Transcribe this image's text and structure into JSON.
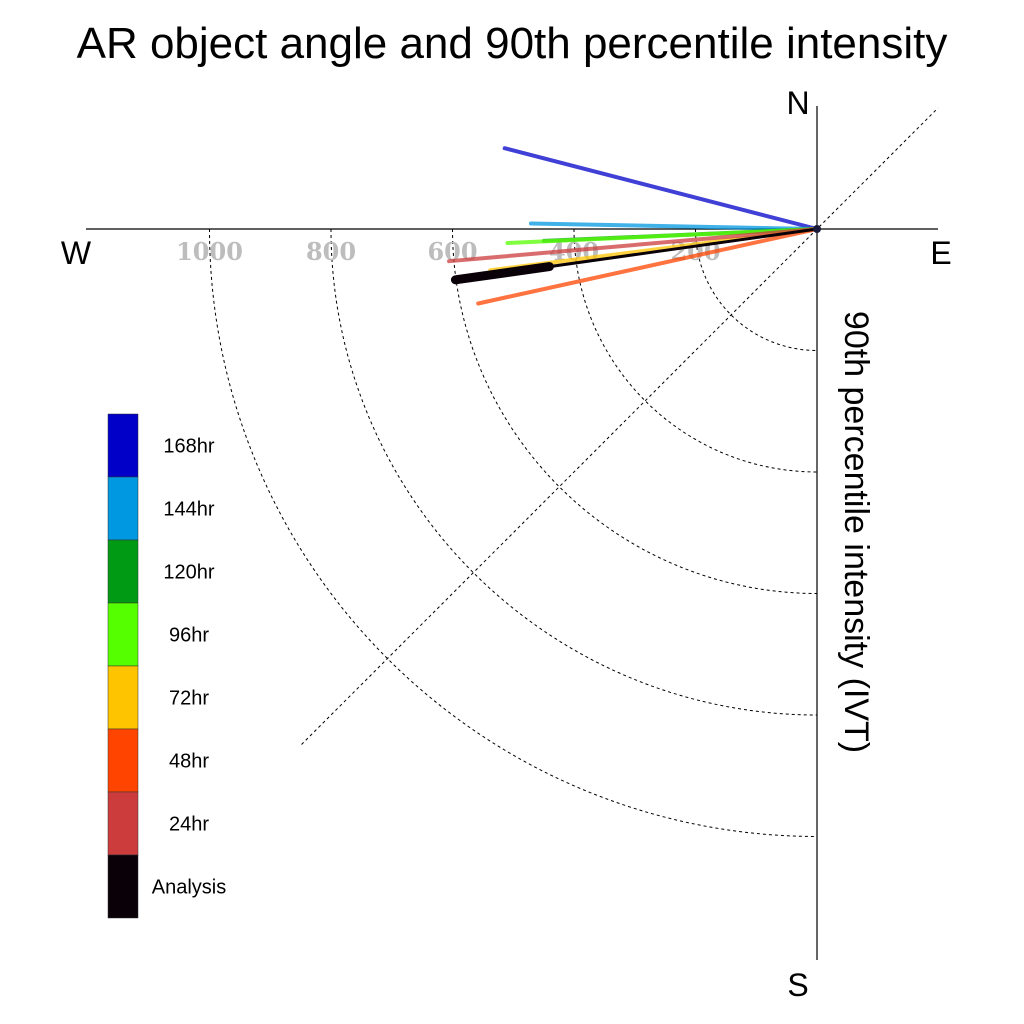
{
  "chart_data": {
    "type": "polar-line",
    "title": "AR object angle and 90th percentile intensity",
    "radial_label": "90th percentile intensity (IVT)",
    "directions": {
      "north": "N",
      "south": "S",
      "east": "E",
      "west": "W"
    },
    "radial_ticks": [
      "200",
      "400",
      "600",
      "800",
      "1000"
    ],
    "radial_tick_values": [
      200,
      400,
      600,
      800,
      1000
    ],
    "radial_range": [
      0,
      1200
    ],
    "angle_unit": "degrees clockwise from north",
    "grid": true,
    "legend_position": "left",
    "series": [
      {
        "name": "168hr",
        "color": "#0000c8",
        "angle": 284.5,
        "intensity": 531
      },
      {
        "name": "144hr",
        "color": "#0098e0",
        "angle": 271.1,
        "intensity": 471
      },
      {
        "name": "120hr",
        "color": "#009a14",
        "angle": 267.5,
        "intensity": 450
      },
      {
        "name": "96hr",
        "color": "#56ff00",
        "angle": 267.4,
        "intensity": 510
      },
      {
        "name": "72hr",
        "color": "#ffc400",
        "angle": 262.8,
        "intensity": 542
      },
      {
        "name": "48hr",
        "color": "#ff4400",
        "angle": 257.6,
        "intensity": 571
      },
      {
        "name": "24hr",
        "color": "#cc3c3c",
        "angle": 265.0,
        "intensity": 608
      },
      {
        "name": "Analysis",
        "color": "#0a0008",
        "angle": 262.0,
        "intensity": 601
      }
    ]
  }
}
